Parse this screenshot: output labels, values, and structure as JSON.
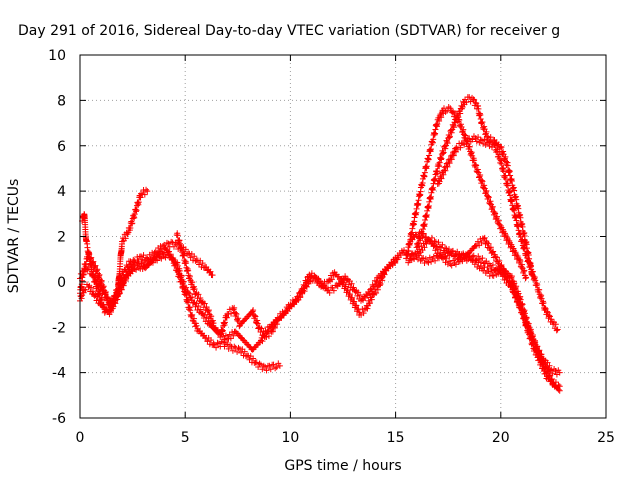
{
  "chart_data": {
    "type": "scatter",
    "title": "Day 291 of 2016, Sidereal Day-to-day VTEC variation (SDTVAR) for receiver g",
    "xlabel": "GPS time / hours",
    "ylabel": "SDTVAR / TECUs",
    "xlim": [
      0,
      25
    ],
    "ylim": [
      -6,
      10
    ],
    "xticks": [
      0,
      5,
      10,
      15,
      20,
      25
    ],
    "yticks": [
      -6,
      -4,
      -2,
      0,
      2,
      4,
      6,
      8,
      10
    ],
    "grid": true,
    "marker": "+",
    "color": "#ff0000",
    "series": [
      {
        "x": [
          0.0,
          0.2,
          0.4,
          0.8,
          1.2,
          1.5,
          1.8,
          2.2,
          2.6,
          2.9,
          3.2,
          3.6,
          4.0,
          4.4,
          4.8,
          5.2,
          5.6,
          6.0,
          6.3
        ],
        "y": [
          -0.5,
          0.6,
          1.2,
          0.5,
          -0.5,
          -1.2,
          -0.6,
          0.3,
          0.9,
          1.1,
          1.0,
          1.3,
          1.6,
          1.7,
          1.5,
          1.2,
          0.9,
          0.6,
          0.3
        ]
      },
      {
        "x": [
          0.1,
          0.2,
          0.3,
          0.6,
          0.9,
          1.2,
          1.6,
          2.0,
          2.4,
          2.8,
          3.1,
          3.4,
          3.7,
          4.1,
          4.4,
          4.7,
          5.0,
          5.3,
          5.6,
          6.0,
          6.4,
          6.8,
          7.2,
          7.6,
          8.0,
          8.4,
          8.8,
          9.2,
          9.5
        ],
        "y": [
          2.7,
          3.0,
          1.8,
          0.3,
          -0.5,
          -1.3,
          -0.8,
          0.3,
          0.9,
          0.8,
          0.6,
          0.9,
          1.2,
          1.4,
          1.0,
          0.3,
          -0.5,
          -1.5,
          -2.1,
          -2.5,
          -2.8,
          -2.7,
          -2.9,
          -3.0,
          -3.3,
          -3.6,
          -3.8,
          -3.7,
          -3.7
        ]
      },
      {
        "x": [
          0.0,
          0.2,
          0.4,
          0.7,
          1.0,
          1.4,
          1.8,
          2.0,
          2.3,
          2.6,
          2.9,
          3.2
        ],
        "y": [
          -0.8,
          -0.3,
          -0.2,
          -0.6,
          -1.0,
          -1.4,
          -0.4,
          1.8,
          2.2,
          3.0,
          3.9,
          4.0
        ]
      },
      {
        "x": [
          0.0,
          0.3,
          0.6,
          1.0,
          1.4,
          1.8,
          2.2,
          2.6,
          3.0,
          3.4,
          3.8,
          4.2,
          4.6,
          5.0,
          5.4,
          5.8,
          6.2,
          6.6,
          7.0,
          7.4,
          7.8,
          8.2,
          8.6,
          9.0,
          9.4,
          9.8,
          10.2,
          10.6,
          11.0,
          11.4,
          11.8,
          12.2,
          12.6,
          13.0,
          13.4,
          13.8,
          14.2,
          14.6,
          15.0,
          15.4
        ],
        "y": [
          0.2,
          0.6,
          0.4,
          -0.3,
          -0.9,
          -0.6,
          0.2,
          0.6,
          0.7,
          0.9,
          1.1,
          1.2,
          0.8,
          -0.3,
          -0.9,
          -1.4,
          -1.9,
          -2.3,
          -2.5,
          -2.2,
          -2.6,
          -3.0,
          -2.6,
          -2.0,
          -1.6,
          -1.3,
          -0.9,
          -0.4,
          0.2,
          0.0,
          -0.4,
          -0.2,
          0.2,
          -0.3,
          -0.8,
          -0.4,
          0.2,
          0.6,
          1.0,
          1.4
        ]
      },
      {
        "x": [
          4.6,
          4.9,
          5.2,
          5.5,
          5.8,
          6.1,
          6.4,
          6.7,
          7.0,
          7.3,
          7.6,
          7.9,
          8.2,
          8.5,
          8.8,
          9.1,
          9.4,
          9.7,
          10.0,
          10.3,
          10.6,
          10.9,
          11.2,
          11.5,
          11.8,
          12.1,
          12.4,
          12.7,
          13.0,
          13.3,
          13.6,
          13.9,
          14.2,
          14.5,
          14.8,
          15.1
        ],
        "y": [
          2.1,
          1.2,
          0.2,
          -0.5,
          -0.9,
          -1.3,
          -2.0,
          -2.3,
          -1.4,
          -1.2,
          -1.9,
          -1.6,
          -1.3,
          -2.0,
          -2.4,
          -2.2,
          -1.7,
          -1.4,
          -1.0,
          -0.8,
          -0.3,
          0.3,
          0.2,
          -0.2,
          0.0,
          0.4,
          0.1,
          -0.4,
          -0.9,
          -1.4,
          -1.2,
          -0.6,
          -0.2,
          0.5,
          0.8,
          1.0
        ]
      },
      {
        "x": [
          15.5,
          15.9,
          16.3,
          16.7,
          17.0,
          17.3,
          17.6,
          18.0,
          18.3,
          18.5,
          18.8,
          19.1,
          19.4,
          19.7,
          20.0,
          20.3,
          20.6,
          20.9,
          21.2
        ],
        "y": [
          1.0,
          2.8,
          4.5,
          6.0,
          7.1,
          7.6,
          7.6,
          7.1,
          6.4,
          5.9,
          5.1,
          4.4,
          3.7,
          3.0,
          2.4,
          1.9,
          1.4,
          0.9,
          0.2
        ]
      },
      {
        "x": [
          16.0,
          16.3,
          16.6,
          16.9,
          17.2,
          17.5,
          17.8,
          18.1,
          18.3,
          18.5,
          18.7,
          18.9,
          19.1,
          19.4,
          19.7,
          20.0,
          20.3,
          20.6,
          20.9,
          21.2,
          21.5
        ],
        "y": [
          1.5,
          2.3,
          3.5,
          4.7,
          5.6,
          6.3,
          7.0,
          7.6,
          8.0,
          8.1,
          8.0,
          7.7,
          7.0,
          6.3,
          6.2,
          5.9,
          5.2,
          4.1,
          2.9,
          1.7,
          0.3
        ]
      },
      {
        "x": [
          17.0,
          17.3,
          17.6,
          17.9,
          18.2,
          18.5,
          18.8,
          19.1,
          19.4,
          19.7,
          20.0,
          20.3,
          20.6,
          20.9,
          21.2,
          21.5,
          21.8,
          22.1,
          22.4,
          22.7
        ],
        "y": [
          4.3,
          4.9,
          5.4,
          5.9,
          6.1,
          6.3,
          6.3,
          6.2,
          6.1,
          6.0,
          5.3,
          4.3,
          3.2,
          2.1,
          1.2,
          0.4,
          -0.4,
          -1.2,
          -1.7,
          -2.1
        ]
      },
      {
        "x": [
          15.5,
          16.0,
          16.5,
          17.0,
          17.5,
          18.0,
          18.5,
          19.0,
          19.5,
          20.0,
          20.5,
          21.0,
          21.3,
          21.6,
          21.9,
          22.2,
          22.5,
          22.8
        ],
        "y": [
          1.3,
          1.1,
          0.9,
          1.1,
          1.3,
          1.2,
          1.1,
          1.0,
          0.7,
          0.4,
          -0.2,
          -1.3,
          -2.2,
          -3.0,
          -3.6,
          -4.2,
          -4.5,
          -4.6
        ]
      },
      {
        "x": [
          15.7,
          16.0,
          16.4,
          16.8,
          17.2,
          17.6,
          18.0,
          18.4,
          18.8,
          19.2,
          19.6,
          20.0,
          20.4,
          20.8,
          21.2,
          21.6,
          22.0,
          22.4,
          22.8
        ],
        "y": [
          1.8,
          2.1,
          2.0,
          1.6,
          1.1,
          0.8,
          0.9,
          1.2,
          1.6,
          1.9,
          1.3,
          0.7,
          0.0,
          -0.8,
          -1.8,
          -2.7,
          -3.4,
          -3.9,
          -4.0
        ]
      },
      {
        "x": [
          15.6,
          16.1,
          16.6,
          17.1,
          17.6,
          18.1,
          18.6,
          19.1,
          19.6,
          20.1,
          20.5,
          20.9,
          21.3,
          21.7,
          22.1,
          22.5,
          22.8
        ],
        "y": [
          0.9,
          1.3,
          1.9,
          1.6,
          1.3,
          1.1,
          1.0,
          0.6,
          0.3,
          0.6,
          0.2,
          -0.7,
          -1.9,
          -2.9,
          -3.8,
          -4.5,
          -4.8
        ]
      }
    ]
  }
}
